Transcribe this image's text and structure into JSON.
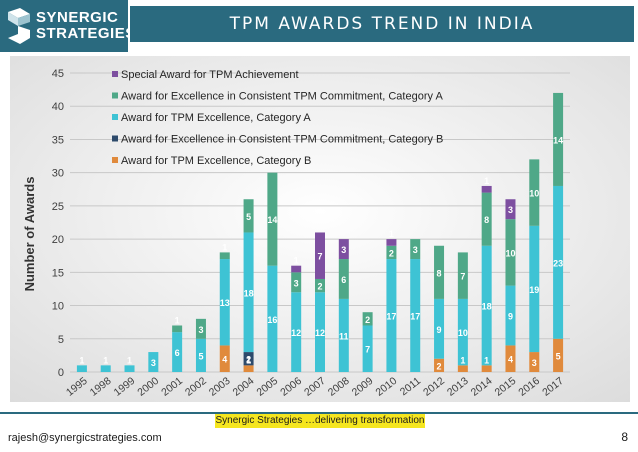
{
  "header": {
    "logo_line1": "SYNERGIC",
    "logo_line2": "STRATEGIES",
    "title": "TPM AWARDS TREND IN INDIA"
  },
  "colors": {
    "brand": "#2a6a7f",
    "footer_band": "#f5e61f"
  },
  "footer": {
    "tagline": "Synergic Strategies …delivering transformation",
    "email": "rajesh@synergicstrategies.com",
    "page_number": "8"
  },
  "chart_data": {
    "type": "bar",
    "stacked": true,
    "ylabel": "Number of Awards",
    "xlabel": "",
    "ylim": [
      0,
      45
    ],
    "yticks": [
      0,
      5,
      10,
      15,
      20,
      25,
      30,
      35,
      40,
      45
    ],
    "grid": true,
    "legend_position": "top-left",
    "categories": [
      "1995",
      "1998",
      "1999",
      "2000",
      "2001",
      "2002",
      "2003",
      "2004",
      "2005",
      "2006",
      "2007",
      "2008",
      "2009",
      "2010",
      "2011",
      "2012",
      "2013",
      "2014",
      "2015",
      "2016",
      "2017"
    ],
    "series": [
      {
        "name": "Award for TPM Excellence, Category B",
        "color": "#e08a3c",
        "values": [
          0,
          0,
          0,
          0,
          0,
          0,
          4,
          1,
          0,
          0,
          0,
          0,
          0,
          0,
          0,
          2,
          1,
          1,
          4,
          3,
          5
        ]
      },
      {
        "name": "Award for Excellence in Consistent TPM Commitment, Category B",
        "color": "#2d4a6b",
        "values": [
          0,
          0,
          0,
          0,
          0,
          0,
          0,
          2,
          0,
          0,
          0,
          0,
          0,
          0,
          0,
          0,
          0,
          0,
          0,
          0,
          0
        ]
      },
      {
        "name": "Award for TPM Excellence, Category A",
        "color": "#3ec3d4",
        "values": [
          1,
          1,
          1,
          3,
          6,
          5,
          13,
          18,
          16,
          12,
          12,
          11,
          7,
          17,
          17,
          9,
          10,
          18,
          9,
          19,
          23
        ]
      },
      {
        "name": "Award for Excellence in Consistent TPM Commitment, Category A",
        "color": "#4fa888",
        "values": [
          0,
          0,
          0,
          0,
          1,
          3,
          1,
          5,
          14,
          3,
          2,
          6,
          2,
          2,
          3,
          8,
          7,
          8,
          10,
          10,
          14
        ]
      },
      {
        "name": "Special Award for TPM Achievement",
        "color": "#7d4fa0",
        "values": [
          0,
          0,
          0,
          0,
          0,
          0,
          0,
          0,
          0,
          1,
          7,
          3,
          0,
          1,
          0,
          0,
          0,
          1,
          3,
          0,
          0
        ]
      }
    ],
    "data_labels": [
      [
        null,
        null,
        null,
        null,
        null,
        null,
        "4",
        "1",
        null,
        null,
        null,
        null,
        null,
        null,
        null,
        "2",
        "1",
        "1",
        "4",
        "3",
        "5"
      ],
      [
        null,
        null,
        null,
        null,
        null,
        null,
        null,
        "2",
        null,
        null,
        null,
        null,
        null,
        null,
        null,
        null,
        null,
        null,
        null,
        null,
        null
      ],
      [
        "1",
        "1",
        "1",
        "3",
        "6",
        "5",
        "13",
        "18",
        "16",
        "12",
        "12",
        "11",
        "7",
        "17",
        "17",
        "9",
        "10",
        "18",
        "9",
        "19",
        "23"
      ],
      [
        null,
        null,
        null,
        null,
        "1",
        "3",
        "1",
        "5",
        "14",
        "3",
        "2",
        "6",
        "2",
        "2",
        "3",
        "8",
        "7",
        "8",
        "10",
        "10",
        "14"
      ],
      [
        null,
        null,
        null,
        null,
        null,
        null,
        null,
        null,
        null,
        "1",
        "7",
        "3",
        null,
        "1",
        null,
        null,
        null,
        "1",
        "3",
        null,
        null
      ]
    ]
  }
}
